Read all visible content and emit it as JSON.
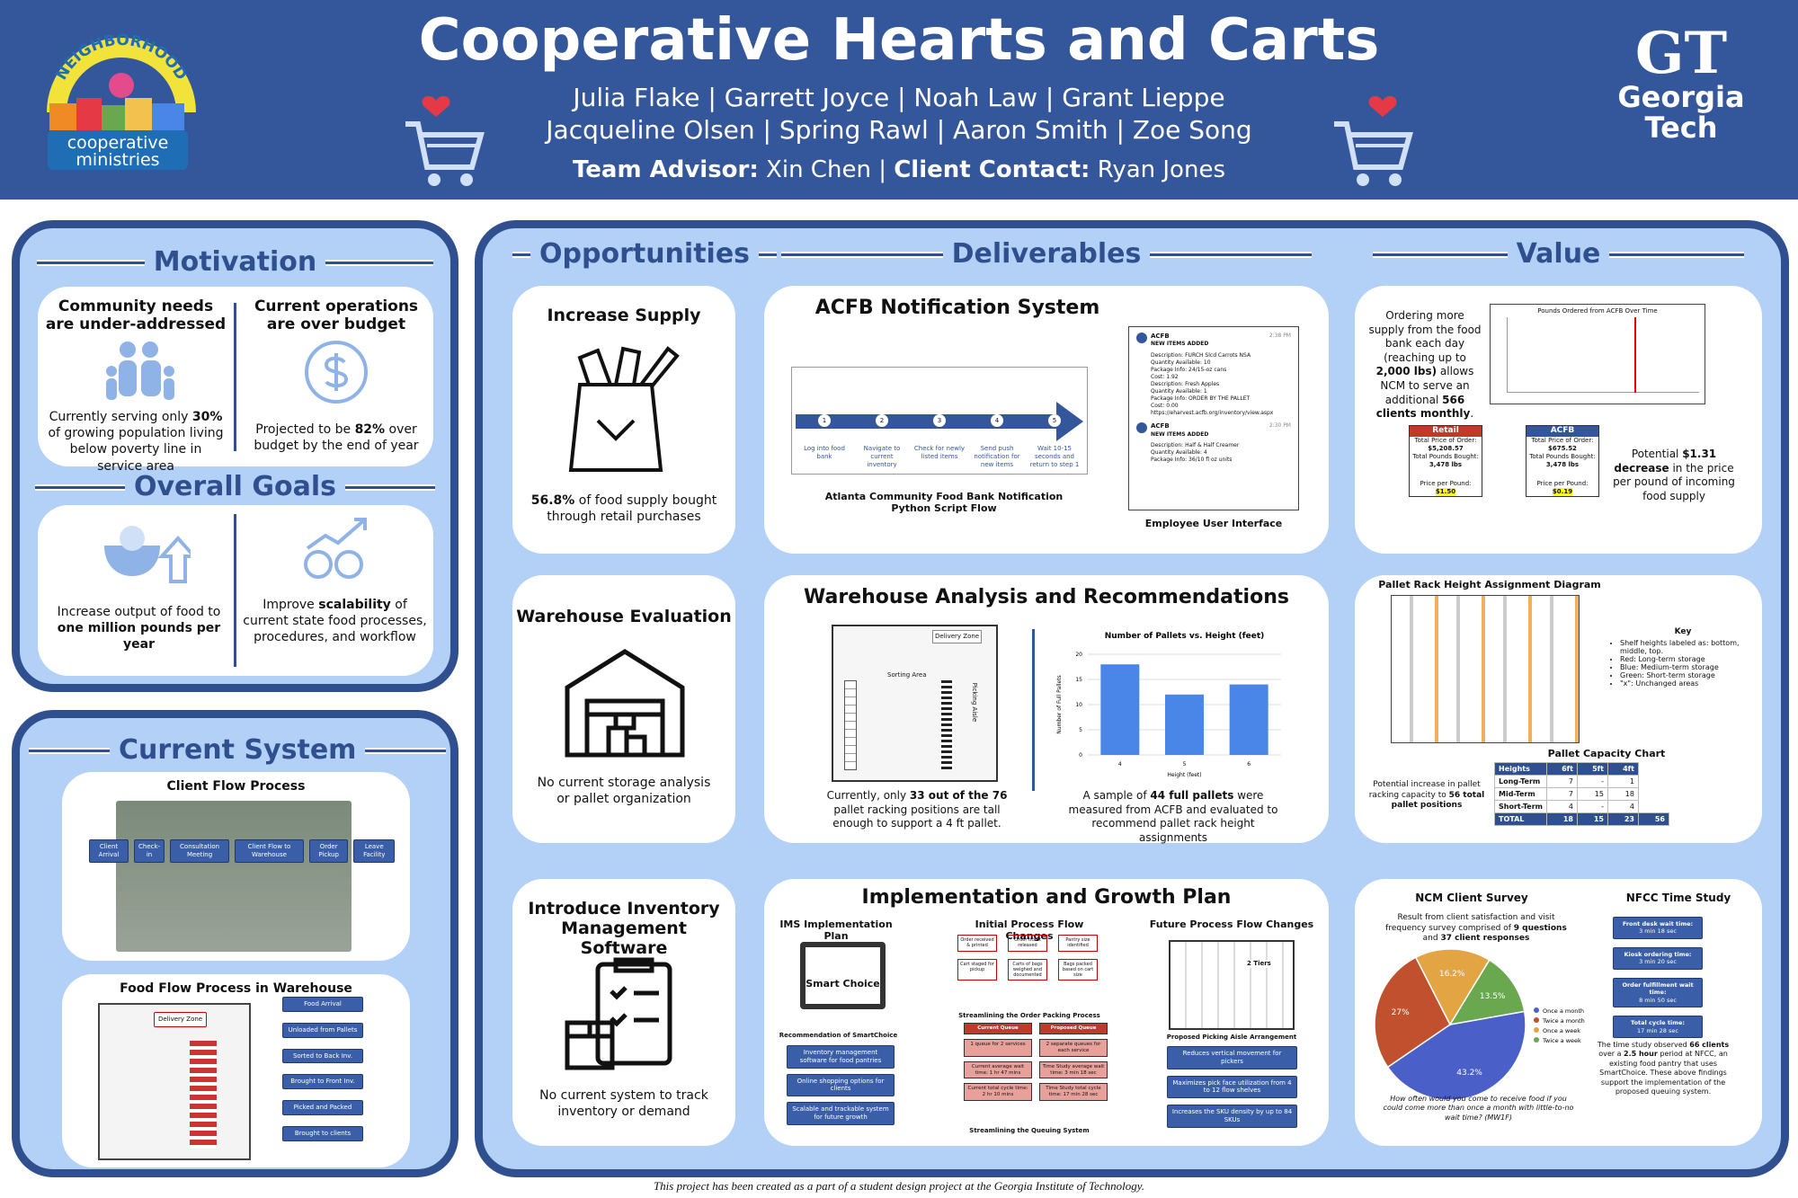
{
  "header": {
    "title": "Cooperative Hearts and Carts",
    "members_line1": "Julia Flake | Garrett Joyce | Noah Law | Grant Lieppe",
    "members_line2": "Jacqueline Olsen | Spring Rawl | Aaron Smith | Zoe Song",
    "advisor_label": "Team Advisor:",
    "advisor": "Xin Chen",
    "separator": "|",
    "client_label": "Client Contact:",
    "client": "Ryan Jones",
    "logo_arch": "NEIGHBORHOOD",
    "logo_line1": "cooperative",
    "logo_line2": "ministries",
    "gt_mark": "GT",
    "gt_line1": "Georgia",
    "gt_line2": "Tech"
  },
  "motivation": {
    "heading": "Motivation",
    "items": [
      {
        "title": "Community needs are under-addressed",
        "text": [
          {
            "text": "Currently serving only "
          },
          {
            "text": "30%",
            "bold": true
          },
          {
            "text": " of growing population living below poverty line in service area"
          }
        ]
      },
      {
        "title": "Current operations are over budget",
        "text": [
          {
            "text": "Projected to be "
          },
          {
            "text": "82%",
            "bold": true
          },
          {
            "text": " over budget by the end of year"
          }
        ]
      }
    ]
  },
  "goals": {
    "heading": "Overall Goals",
    "items": [
      {
        "text": [
          {
            "text": "Increase output of food to "
          },
          {
            "text": "one million pounds per year",
            "bold": true
          }
        ]
      },
      {
        "text": [
          {
            "text": "Improve "
          },
          {
            "text": "scalability",
            "bold": true
          },
          {
            "text": " of current state food processes, procedures, and workflow"
          }
        ]
      }
    ]
  },
  "current_system": {
    "heading": "Current System",
    "client_flow": {
      "title": "Client Flow Process",
      "steps": [
        "Client Arrival",
        "Check-in",
        "Consultation Meeting",
        "Client Flow to Warehouse",
        "Order Pickup",
        "Leave Facility"
      ]
    },
    "food_flow": {
      "title": "Food Flow Process in Warehouse",
      "steps": [
        "Food Arrival",
        "Unloaded from Pallets",
        "Sorted to Back Inv.",
        "Brought to Front Inv.",
        "Picked and Packed",
        "Brought to clients"
      ],
      "zone": "Delivery Zone"
    }
  },
  "sections": {
    "opportunities": "Opportunities",
    "deliverables": "Deliverables",
    "value": "Value"
  },
  "opportunities": [
    {
      "title": "Increase Supply",
      "text": [
        {
          "text": "56.8%",
          "bold": true
        },
        {
          "text": " of food supply bought through retail purchases"
        }
      ]
    },
    {
      "title": "Warehouse Evaluation",
      "text": [
        {
          "text": "No current storage analysis or pallet organization"
        }
      ]
    },
    {
      "title": "Introduce Inventory Management Software",
      "text": [
        {
          "text": "No current system to track inventory or demand"
        }
      ]
    }
  ],
  "deliverables": {
    "notification": {
      "title": "ACFB Notification System",
      "steps": [
        "Log into food bank",
        "Navigate to current inventory",
        "Check for newly listed items",
        "Send push notification for new items",
        "Wait 10-15 seconds and return to step 1"
      ],
      "step_numbers": [
        "1",
        "2",
        "3",
        "4",
        "5"
      ],
      "flow_caption": "Atlanta Community Food Bank Notification Python Script Flow",
      "ui_caption": "Employee User Interface",
      "emails": [
        {
          "sender": "ACFB",
          "subject": "NEW ITEMS ADDED",
          "time": "2:38 PM",
          "lines": [
            "Description: FURCH Slcd Carrots NSA",
            "Quantity Available: 10",
            "Package Info: 24/15-oz cans",
            "Cost: 1.92",
            "Description: Fresh Apples",
            "Quantity Available: 1",
            "Package Info: ORDER BY THE PALLET",
            "Cost: 0.00",
            "https://eharvest.acfb.org/inventory/view.aspx"
          ]
        },
        {
          "sender": "ACFB",
          "subject": "NEW ITEMS ADDED",
          "time": "2:30 PM",
          "lines": [
            "Description: Half & Half Creamer",
            "Quantity Available: 4",
            "Package Info: 36/10 fl oz units"
          ]
        }
      ]
    },
    "warehouse": {
      "title": "Warehouse Analysis and Recommendations",
      "map_labels": [
        "Delivery Zone",
        "Sorting Area",
        "Picking Aisle"
      ],
      "map_caption": [
        {
          "text": "Currently, only "
        },
        {
          "text": "33 out of the 76",
          "bold": true
        },
        {
          "text": " pallet racking positions are tall enough to support a 4 ft pallet."
        }
      ],
      "chart_caption": [
        {
          "text": "A sample of "
        },
        {
          "text": "44 full pallets",
          "bold": true
        },
        {
          "text": " were measured from ACFB and evaluated to recommend pallet rack height assignments"
        }
      ]
    },
    "implementation": {
      "title": "Implementation and Growth Plan",
      "ims": {
        "title": "IMS Implementation Plan",
        "logo": "Smart Choice",
        "subtitle": "Recommendation of SmartChoice",
        "boxes": [
          "Inventory management software for food pantries",
          "Online shopping options for clients",
          "Scalable and trackable system for future growth"
        ]
      },
      "initial": {
        "title": "Initial Process Flow Changes",
        "flow": [
          "Order received & printed",
          "Order ticket released",
          "Pantry size identified",
          "Cart staged for pickup",
          "Carts of bags weighed and documented",
          "Bags packed based on cart size"
        ],
        "flow_caption": "Streamlining the Order Packing Process",
        "queue_headers": [
          "Current Queue",
          "Proposed Queue"
        ],
        "queue_rows": [
          [
            "1 queue for 2 services",
            "2 separate queues for each service"
          ],
          [
            "Current average wait time: 1 hr 47 mins",
            "Time Study average wait time: 3 min 18 sec"
          ],
          [
            "Current total cycle time: 2 hr 10 mins",
            "Time Study total cycle time: 17 min 28 sec"
          ]
        ],
        "queue_caption": "Streamlining the Queuing System"
      },
      "future": {
        "title": "Future Process Flow Changes",
        "tiers": "2 Tiers",
        "caption": "Proposed Picking Aisle Arrangement",
        "boxes": [
          "Reduces vertical movement for pickers",
          "Maximizes pick face utilization from 4 to 12 flow shelves",
          "Increases the SKU density by up to 84 SKUs"
        ]
      }
    }
  },
  "chart_data": [
    {
      "type": "bar",
      "title": "Number of Pallets vs. Height (feet)",
      "x_label": "Height (feet)",
      "y_label": "Number of Full Pallets",
      "categories": [
        "4",
        "5",
        "6"
      ],
      "values": [
        18,
        12,
        14
      ],
      "color": "#4a86e8",
      "ylim": [
        0,
        20
      ],
      "yticks": [
        0,
        5,
        10,
        15,
        20
      ],
      "grid": true
    },
    {
      "type": "pie",
      "title": "NCM Client Survey",
      "subtitle": [
        {
          "text": "Result from client satisfaction and visit frequency survey comprised of "
        },
        {
          "text": "9 questions",
          "bold": true
        },
        {
          "text": " and "
        },
        {
          "text": "37 client responses",
          "bold": true
        }
      ],
      "categories": [
        "Once a month",
        "Twice a month",
        "Once a week",
        "Twice a week"
      ],
      "values": [
        43.2,
        27,
        16.2,
        13.5
      ],
      "value_labels": [
        "43.2%",
        "27%",
        "16.2%",
        "13.5%"
      ],
      "colors": [
        "#4a5fc8",
        "#c0502e",
        "#e3a443",
        "#6aa84f"
      ],
      "question": "How often would you come to receive food if you could come more than once a month with little-to-no wait time? (MW1F)"
    }
  ],
  "value": {
    "supply": {
      "text": [
        {
          "text": "Ordering more supply from the food bank each day (reaching up to "
        },
        {
          "text": "2,000 lbs)",
          "bold": true
        },
        {
          "text": " allows NCM to serve an additional "
        },
        {
          "text": "566 clients monthly",
          "bold": true
        },
        {
          "text": "."
        }
      ],
      "chart_title": "Pounds Ordered from ACFB Over Time",
      "cards": [
        {
          "name": "Retail",
          "price_label": "Total Price of Order:",
          "price": "$5,208.57",
          "lbs_label": "Total Pounds Bought:",
          "lbs": "3,478 lbs",
          "ppl_label": "Price per Pound:",
          "ppl": "$1.50"
        },
        {
          "name": "ACFB",
          "price_label": "Total Price of Order:",
          "price": "$675.52",
          "lbs_label": "Total Pounds Bought:",
          "lbs": "3,478 lbs",
          "ppl_label": "Price per Pound:",
          "ppl": "$0.19"
        }
      ],
      "note": [
        {
          "text": "Potential "
        },
        {
          "text": "$1.31 decrease",
          "bold": true
        },
        {
          "text": " in the price per pound of incoming food supply"
        }
      ]
    },
    "pallet": {
      "title": "Pallet Rack Height Assignment Diagram",
      "key_title": "Key",
      "key": [
        "Shelf heights labeled as: bottom, middle, top.",
        "Red: Long-term storage",
        "Blue: Medium-term storage",
        "Green: Short-term storage",
        "\"x\": Unchanged areas"
      ],
      "capacity_title": "Pallet Capacity Chart",
      "table_header": [
        "Heights",
        "6ft",
        "5ft",
        "4ft"
      ],
      "table_rows": [
        [
          "Long-Term",
          "7",
          "-",
          "1"
        ],
        [
          "Mid-Term",
          "7",
          "15",
          "18"
        ],
        [
          "Short-Term",
          "4",
          "-",
          "4"
        ],
        [
          "TOTAL",
          "18",
          "15",
          "23",
          "56"
        ]
      ],
      "note": [
        {
          "text": "Potential increase in pallet racking capacity to "
        },
        {
          "text": "56 total pallet positions",
          "bold": true
        }
      ]
    },
    "time_study": {
      "title": "NFCC Time Study",
      "boxes": [
        {
          "label": "Front desk wait time:",
          "value": "3 min 18 sec"
        },
        {
          "label": "Kiosk ordering time:",
          "value": "3 min 20 sec"
        },
        {
          "label": "Order fulfillment wait time:",
          "value": "8 min 50 sec"
        },
        {
          "label": "Total cycle time:",
          "value": "17 min 28 sec"
        }
      ],
      "note": [
        {
          "text": "The time study observed "
        },
        {
          "text": "66 clients",
          "bold": true
        },
        {
          "text": " over a "
        },
        {
          "text": "2.5 hour",
          "bold": true
        },
        {
          "text": " period at NFCC, an existing food pantry that uses SmartChoice. These above findings support the implementation of the proposed queuing system."
        }
      ]
    }
  },
  "footer": "This project has been created as a part of a student design project at the Georgia Institute of Technology."
}
